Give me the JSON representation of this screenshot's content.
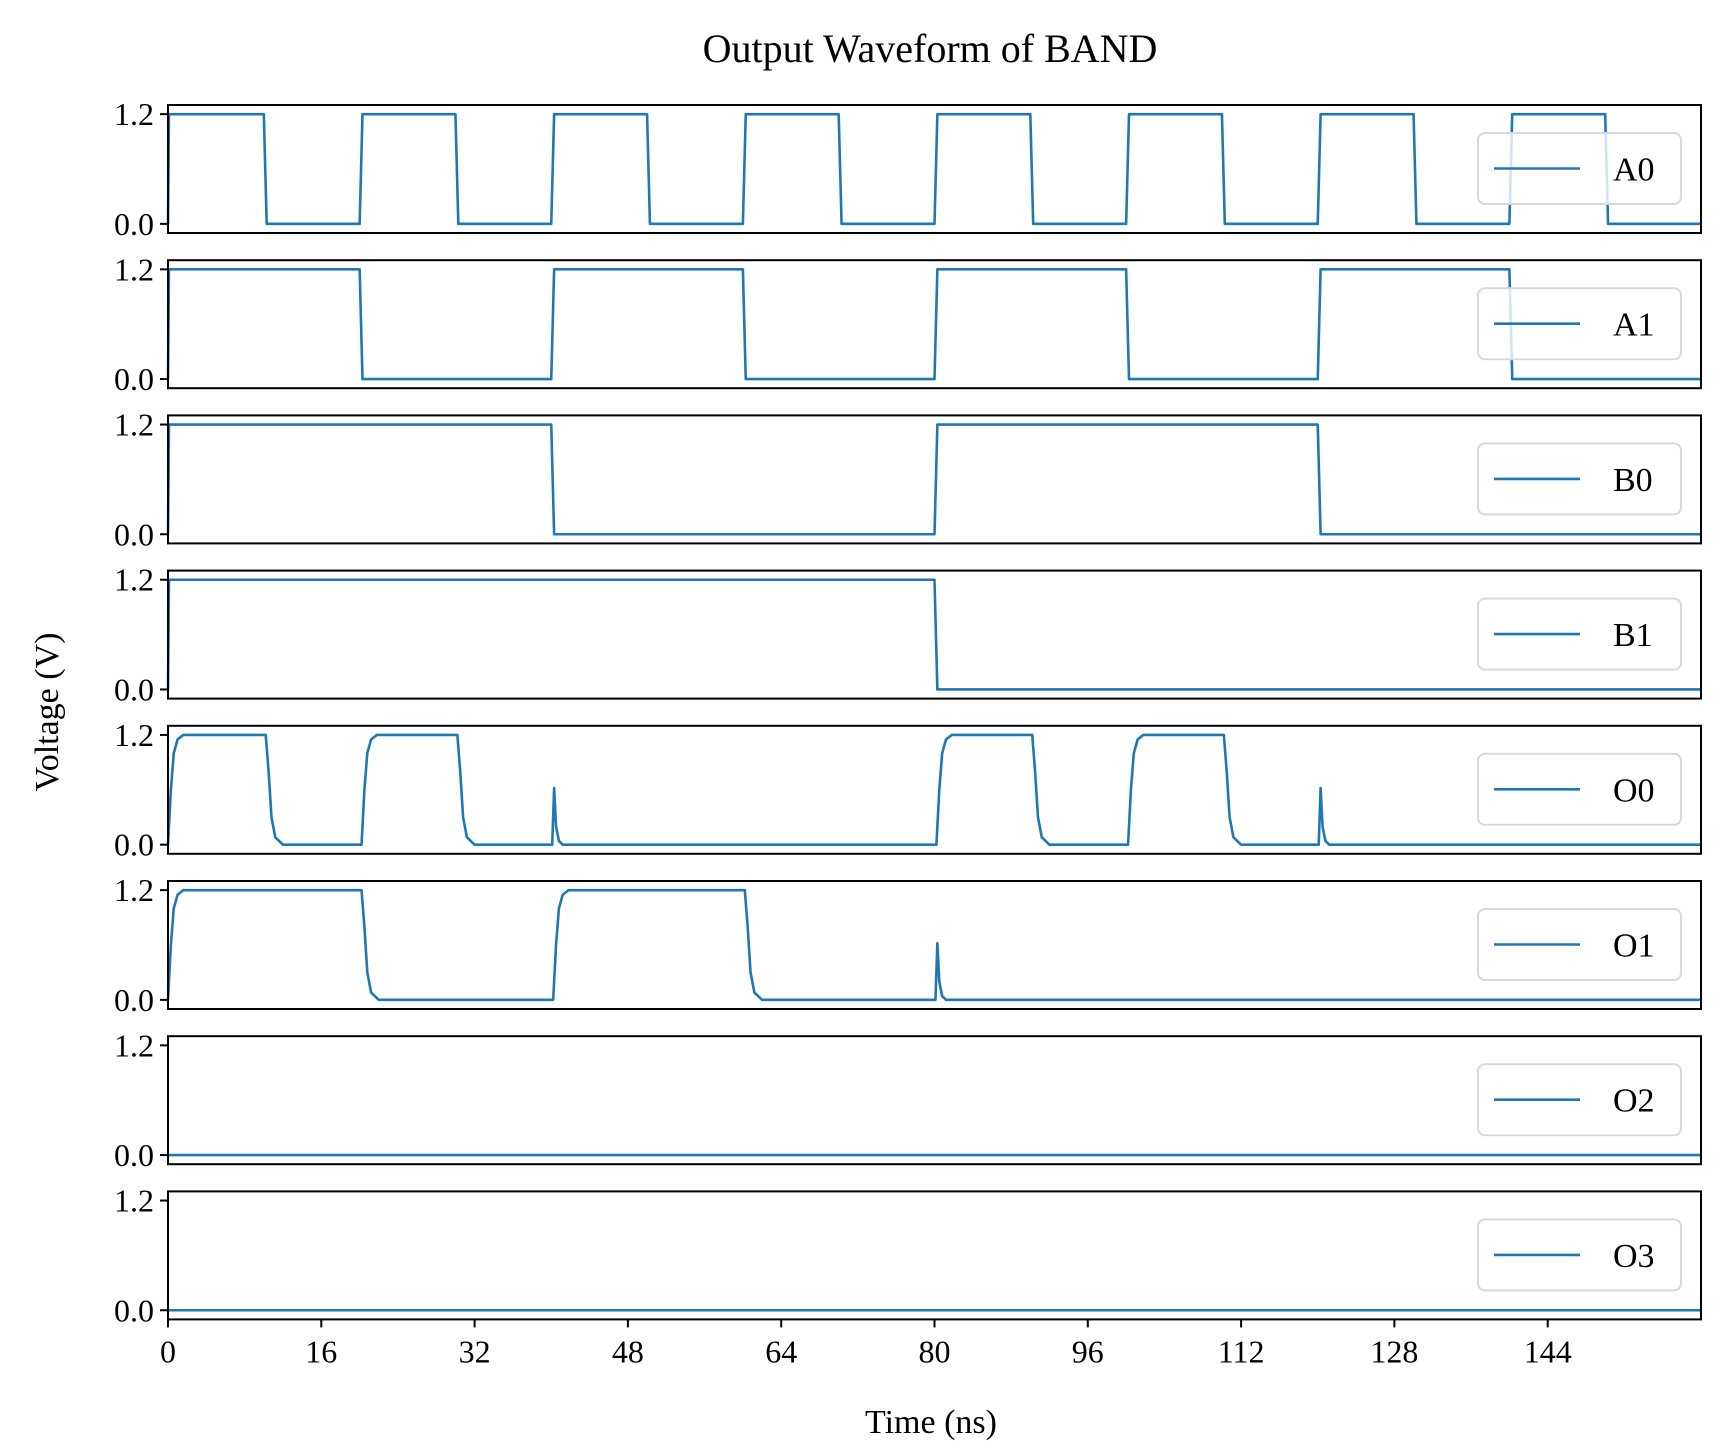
{
  "chart_data": {
    "type": "line",
    "title": "Output Waveform of BAND",
    "xlabel": "Time (ns)",
    "ylabel": "Voltage (V)",
    "xlim": [
      0,
      160
    ],
    "ylim": [
      -0.1,
      1.3
    ],
    "x_ticks": [
      "0",
      "16",
      "32",
      "48",
      "64",
      "80",
      "96",
      "112",
      "128",
      "144"
    ],
    "y_ticks": [
      "0.0",
      "1.2"
    ],
    "grid": false,
    "legend_position": "center-right",
    "line_color": "#1f77b4",
    "series": [
      {
        "name": "A0",
        "points": [
          [
            0,
            0
          ],
          [
            0.1,
            1.2
          ],
          [
            10,
            1.2
          ],
          [
            10.3,
            0
          ],
          [
            20,
            0
          ],
          [
            20.3,
            1.2
          ],
          [
            30,
            1.2
          ],
          [
            30.3,
            0
          ],
          [
            40,
            0
          ],
          [
            40.3,
            1.2
          ],
          [
            50,
            1.2
          ],
          [
            50.3,
            0
          ],
          [
            60,
            0
          ],
          [
            60.3,
            1.2
          ],
          [
            70,
            1.2
          ],
          [
            70.3,
            0
          ],
          [
            80,
            0
          ],
          [
            80.3,
            1.2
          ],
          [
            90,
            1.2
          ],
          [
            90.3,
            0
          ],
          [
            100,
            0
          ],
          [
            100.3,
            1.2
          ],
          [
            110,
            1.2
          ],
          [
            110.3,
            0
          ],
          [
            120,
            0
          ],
          [
            120.3,
            1.2
          ],
          [
            130,
            1.2
          ],
          [
            130.3,
            0
          ],
          [
            140,
            0
          ],
          [
            140.3,
            1.2
          ],
          [
            150,
            1.2
          ],
          [
            150.3,
            0
          ],
          [
            160,
            0
          ]
        ]
      },
      {
        "name": "A1",
        "points": [
          [
            0,
            0
          ],
          [
            0.1,
            1.2
          ],
          [
            20,
            1.2
          ],
          [
            20.3,
            0
          ],
          [
            40,
            0
          ],
          [
            40.3,
            1.2
          ],
          [
            60,
            1.2
          ],
          [
            60.3,
            0
          ],
          [
            80,
            0
          ],
          [
            80.3,
            1.2
          ],
          [
            100,
            1.2
          ],
          [
            100.3,
            0
          ],
          [
            120,
            0
          ],
          [
            120.3,
            1.2
          ],
          [
            140,
            1.2
          ],
          [
            140.3,
            0
          ],
          [
            160,
            0
          ]
        ]
      },
      {
        "name": "B0",
        "points": [
          [
            0,
            0
          ],
          [
            0.1,
            1.2
          ],
          [
            40,
            1.2
          ],
          [
            40.3,
            0
          ],
          [
            80,
            0
          ],
          [
            80.3,
            1.2
          ],
          [
            120,
            1.2
          ],
          [
            120.3,
            0
          ],
          [
            160,
            0
          ]
        ]
      },
      {
        "name": "B1",
        "points": [
          [
            0,
            0
          ],
          [
            0.1,
            1.2
          ],
          [
            80,
            1.2
          ],
          [
            80.3,
            0
          ],
          [
            160,
            0
          ]
        ]
      },
      {
        "name": "O0",
        "points": [
          [
            0,
            0
          ],
          [
            0.3,
            0.6
          ],
          [
            0.6,
            1.0
          ],
          [
            1.0,
            1.15
          ],
          [
            1.6,
            1.2
          ],
          [
            10.2,
            1.2
          ],
          [
            10.5,
            0.8
          ],
          [
            10.8,
            0.3
          ],
          [
            11.2,
            0.08
          ],
          [
            12,
            0
          ],
          [
            20.2,
            0
          ],
          [
            20.5,
            0.6
          ],
          [
            20.8,
            1.0
          ],
          [
            21.2,
            1.15
          ],
          [
            21.8,
            1.2
          ],
          [
            30.2,
            1.2
          ],
          [
            30.5,
            0.8
          ],
          [
            30.8,
            0.3
          ],
          [
            31.2,
            0.08
          ],
          [
            32,
            0
          ],
          [
            40.1,
            0
          ],
          [
            40.3,
            0.62
          ],
          [
            40.5,
            0.2
          ],
          [
            40.8,
            0.04
          ],
          [
            41.2,
            0
          ],
          [
            80.2,
            0
          ],
          [
            80.5,
            0.6
          ],
          [
            80.8,
            1.0
          ],
          [
            81.2,
            1.15
          ],
          [
            81.8,
            1.2
          ],
          [
            90.2,
            1.2
          ],
          [
            90.5,
            0.8
          ],
          [
            90.8,
            0.3
          ],
          [
            91.2,
            0.08
          ],
          [
            92,
            0
          ],
          [
            100.2,
            0
          ],
          [
            100.5,
            0.6
          ],
          [
            100.8,
            1.0
          ],
          [
            101.2,
            1.15
          ],
          [
            101.8,
            1.2
          ],
          [
            110.2,
            1.2
          ],
          [
            110.5,
            0.8
          ],
          [
            110.8,
            0.3
          ],
          [
            111.2,
            0.08
          ],
          [
            112,
            0
          ],
          [
            120.1,
            0
          ],
          [
            120.3,
            0.62
          ],
          [
            120.5,
            0.2
          ],
          [
            120.8,
            0.04
          ],
          [
            121.2,
            0
          ],
          [
            160,
            0
          ]
        ]
      },
      {
        "name": "O1",
        "points": [
          [
            0,
            0
          ],
          [
            0.3,
            0.6
          ],
          [
            0.6,
            1.0
          ],
          [
            1.0,
            1.15
          ],
          [
            1.6,
            1.2
          ],
          [
            20.2,
            1.2
          ],
          [
            20.5,
            0.8
          ],
          [
            20.8,
            0.3
          ],
          [
            21.2,
            0.08
          ],
          [
            22,
            0
          ],
          [
            40.2,
            0
          ],
          [
            40.5,
            0.6
          ],
          [
            40.8,
            1.0
          ],
          [
            41.2,
            1.15
          ],
          [
            41.8,
            1.2
          ],
          [
            60.2,
            1.2
          ],
          [
            60.5,
            0.8
          ],
          [
            60.8,
            0.3
          ],
          [
            61.2,
            0.08
          ],
          [
            62,
            0
          ],
          [
            80.1,
            0
          ],
          [
            80.3,
            0.62
          ],
          [
            80.5,
            0.2
          ],
          [
            80.8,
            0.04
          ],
          [
            81.2,
            0
          ],
          [
            160,
            0
          ]
        ]
      },
      {
        "name": "O2",
        "points": [
          [
            0,
            0
          ],
          [
            160,
            0
          ]
        ]
      },
      {
        "name": "O3",
        "points": [
          [
            0,
            0
          ],
          [
            160,
            0
          ]
        ]
      }
    ]
  }
}
